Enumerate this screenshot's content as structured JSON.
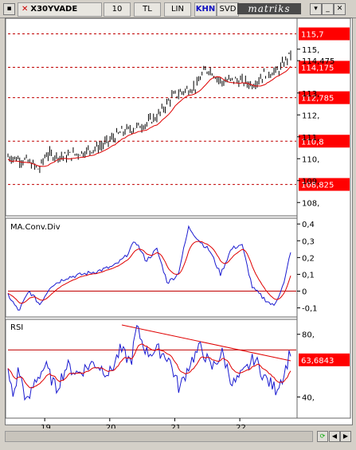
{
  "toolbar": {
    "symbol": "X30YVADE",
    "period": "10",
    "currency": "TL",
    "scale": "LIN",
    "khn": "KHN",
    "svd": "SVD",
    "logo": "matriks"
  },
  "price_axis": {
    "ticks": [
      "115,",
      "114,475",
      "113,",
      "112,",
      "111,",
      "110,",
      "109,",
      "108,"
    ],
    "tick_values": [
      115,
      114.475,
      113,
      112,
      111,
      110,
      109,
      108
    ],
    "levels": [
      {
        "label": "115,7",
        "value": 115.7
      },
      {
        "label": "114,175",
        "value": 114.175
      },
      {
        "label": "112,785",
        "value": 112.785
      },
      {
        "label": "110,8",
        "value": 110.8
      },
      {
        "label": "108,825",
        "value": 108.825
      }
    ],
    "range": [
      107.5,
      116.3
    ]
  },
  "macd": {
    "title": "MA.Conv.Div",
    "ticks": [
      "0,4",
      "0,3",
      "0,2",
      "0,1",
      "0",
      "-0,1"
    ],
    "tick_values": [
      0.4,
      0.3,
      0.2,
      0.1,
      0,
      -0.1
    ],
    "range": [
      -0.14,
      0.42
    ]
  },
  "rsi": {
    "title": "RSI",
    "ticks": [
      "80,",
      "40,"
    ],
    "tick_values": [
      80,
      40
    ],
    "current": "63,6843",
    "current_value": 63.6843,
    "level": 70,
    "range": [
      28,
      88
    ]
  },
  "x_axis": {
    "labels": [
      "19",
      "20",
      "21",
      "22"
    ],
    "label_fractions": [
      0.13,
      0.36,
      0.59,
      0.82
    ]
  },
  "colors": {
    "up": "#000000",
    "ma": "#e00000",
    "macd_line": "#1a1ad0",
    "signal_line": "#e00000",
    "level_tag": "#ff0000",
    "grid": "#c00000"
  },
  "icons": {
    "close": "close-icon",
    "dropdown": "chevron-down-icon",
    "refresh": "refresh-icon",
    "scroll_left": "arrow-left-icon",
    "scroll_right": "arrow-right-icon"
  }
}
